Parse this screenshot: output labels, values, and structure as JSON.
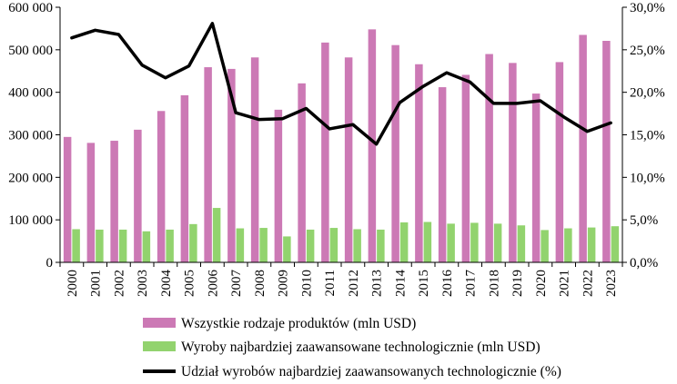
{
  "chart_data": {
    "type": "bar",
    "categories": [
      "2000",
      "2001",
      "2002",
      "2003",
      "2004",
      "2005",
      "2006",
      "2007",
      "2008",
      "2009",
      "2010",
      "2011",
      "2012",
      "2013",
      "2014",
      "2015",
      "2016",
      "2017",
      "2018",
      "2019",
      "2020",
      "2021",
      "2022",
      "2023"
    ],
    "series": [
      {
        "name": "Wszystkie rodzaje produktów (mln USD)",
        "type": "bar",
        "axis": "left",
        "color": "#cc79b5",
        "values": [
          295000,
          281000,
          286000,
          312000,
          356000,
          393000,
          459000,
          455000,
          482000,
          359000,
          421000,
          517000,
          482000,
          548000,
          511000,
          466000,
          412000,
          441000,
          490000,
          469000,
          397000,
          471000,
          535000,
          521000
        ]
      },
      {
        "name": "Wyroby najbardziej zaawansowane technologicznie (mln USD)",
        "type": "bar",
        "axis": "left",
        "color": "#92d36e",
        "values": [
          78000,
          77000,
          77000,
          73000,
          77000,
          90000,
          128000,
          80000,
          81000,
          61000,
          77000,
          81000,
          78000,
          77000,
          94000,
          95000,
          91000,
          93000,
          91000,
          87000,
          76000,
          80000,
          82000,
          85000
        ]
      },
      {
        "name": "Udział wyrobów najbardziej zaawansowanych technologicznie (%)",
        "type": "line",
        "axis": "right",
        "color": "#000000",
        "values": [
          26.4,
          27.3,
          26.8,
          23.2,
          21.7,
          23.1,
          28.1,
          17.6,
          16.8,
          16.9,
          18.1,
          15.7,
          16.2,
          13.9,
          18.8,
          20.7,
          22.3,
          21.2,
          18.7,
          18.7,
          19.0,
          17.1,
          15.4,
          16.4
        ]
      }
    ],
    "ylim_left": [
      0,
      600000
    ],
    "ylim_right": [
      0,
      30
    ],
    "left_ticks": [
      "0",
      "100 000",
      "200 000",
      "300 000",
      "400 000",
      "500 000",
      "600 000"
    ],
    "right_ticks": [
      "0,0%",
      "5,0%",
      "10,0%",
      "15,0%",
      "20,0%",
      "25,0%",
      "30,0%"
    ],
    "grid": false,
    "legend_position": "bottom"
  }
}
